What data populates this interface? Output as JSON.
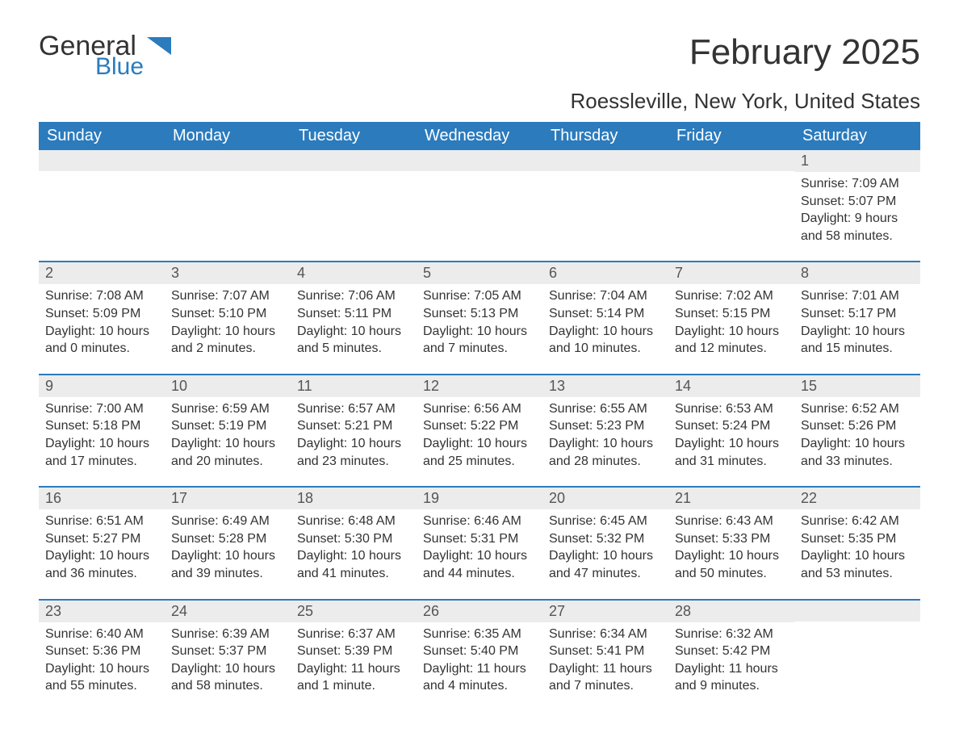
{
  "brand": {
    "part1": "General",
    "part2": "Blue",
    "brand_color": "#2b7bbd"
  },
  "title": "February 2025",
  "location": "Roessleville, New York, United States",
  "colors": {
    "header_bg": "#2b7bbd",
    "header_text": "#ffffff",
    "daynum_bg": "#ececec",
    "week_border": "#2b7bbd",
    "text": "#333333",
    "background": "#ffffff"
  },
  "typography": {
    "title_fontsize": 44,
    "location_fontsize": 26,
    "weekday_fontsize": 20,
    "daynum_fontsize": 18,
    "body_fontsize": 16
  },
  "weekdays": [
    "Sunday",
    "Monday",
    "Tuesday",
    "Wednesday",
    "Thursday",
    "Friday",
    "Saturday"
  ],
  "weeks": [
    [
      null,
      null,
      null,
      null,
      null,
      null,
      {
        "day": "1",
        "sunrise": "Sunrise: 7:09 AM",
        "sunset": "Sunset: 5:07 PM",
        "daylight1": "Daylight: 9 hours",
        "daylight2": "and 58 minutes."
      }
    ],
    [
      {
        "day": "2",
        "sunrise": "Sunrise: 7:08 AM",
        "sunset": "Sunset: 5:09 PM",
        "daylight1": "Daylight: 10 hours",
        "daylight2": "and 0 minutes."
      },
      {
        "day": "3",
        "sunrise": "Sunrise: 7:07 AM",
        "sunset": "Sunset: 5:10 PM",
        "daylight1": "Daylight: 10 hours",
        "daylight2": "and 2 minutes."
      },
      {
        "day": "4",
        "sunrise": "Sunrise: 7:06 AM",
        "sunset": "Sunset: 5:11 PM",
        "daylight1": "Daylight: 10 hours",
        "daylight2": "and 5 minutes."
      },
      {
        "day": "5",
        "sunrise": "Sunrise: 7:05 AM",
        "sunset": "Sunset: 5:13 PM",
        "daylight1": "Daylight: 10 hours",
        "daylight2": "and 7 minutes."
      },
      {
        "day": "6",
        "sunrise": "Sunrise: 7:04 AM",
        "sunset": "Sunset: 5:14 PM",
        "daylight1": "Daylight: 10 hours",
        "daylight2": "and 10 minutes."
      },
      {
        "day": "7",
        "sunrise": "Sunrise: 7:02 AM",
        "sunset": "Sunset: 5:15 PM",
        "daylight1": "Daylight: 10 hours",
        "daylight2": "and 12 minutes."
      },
      {
        "day": "8",
        "sunrise": "Sunrise: 7:01 AM",
        "sunset": "Sunset: 5:17 PM",
        "daylight1": "Daylight: 10 hours",
        "daylight2": "and 15 minutes."
      }
    ],
    [
      {
        "day": "9",
        "sunrise": "Sunrise: 7:00 AM",
        "sunset": "Sunset: 5:18 PM",
        "daylight1": "Daylight: 10 hours",
        "daylight2": "and 17 minutes."
      },
      {
        "day": "10",
        "sunrise": "Sunrise: 6:59 AM",
        "sunset": "Sunset: 5:19 PM",
        "daylight1": "Daylight: 10 hours",
        "daylight2": "and 20 minutes."
      },
      {
        "day": "11",
        "sunrise": "Sunrise: 6:57 AM",
        "sunset": "Sunset: 5:21 PM",
        "daylight1": "Daylight: 10 hours",
        "daylight2": "and 23 minutes."
      },
      {
        "day": "12",
        "sunrise": "Sunrise: 6:56 AM",
        "sunset": "Sunset: 5:22 PM",
        "daylight1": "Daylight: 10 hours",
        "daylight2": "and 25 minutes."
      },
      {
        "day": "13",
        "sunrise": "Sunrise: 6:55 AM",
        "sunset": "Sunset: 5:23 PM",
        "daylight1": "Daylight: 10 hours",
        "daylight2": "and 28 minutes."
      },
      {
        "day": "14",
        "sunrise": "Sunrise: 6:53 AM",
        "sunset": "Sunset: 5:24 PM",
        "daylight1": "Daylight: 10 hours",
        "daylight2": "and 31 minutes."
      },
      {
        "day": "15",
        "sunrise": "Sunrise: 6:52 AM",
        "sunset": "Sunset: 5:26 PM",
        "daylight1": "Daylight: 10 hours",
        "daylight2": "and 33 minutes."
      }
    ],
    [
      {
        "day": "16",
        "sunrise": "Sunrise: 6:51 AM",
        "sunset": "Sunset: 5:27 PM",
        "daylight1": "Daylight: 10 hours",
        "daylight2": "and 36 minutes."
      },
      {
        "day": "17",
        "sunrise": "Sunrise: 6:49 AM",
        "sunset": "Sunset: 5:28 PM",
        "daylight1": "Daylight: 10 hours",
        "daylight2": "and 39 minutes."
      },
      {
        "day": "18",
        "sunrise": "Sunrise: 6:48 AM",
        "sunset": "Sunset: 5:30 PM",
        "daylight1": "Daylight: 10 hours",
        "daylight2": "and 41 minutes."
      },
      {
        "day": "19",
        "sunrise": "Sunrise: 6:46 AM",
        "sunset": "Sunset: 5:31 PM",
        "daylight1": "Daylight: 10 hours",
        "daylight2": "and 44 minutes."
      },
      {
        "day": "20",
        "sunrise": "Sunrise: 6:45 AM",
        "sunset": "Sunset: 5:32 PM",
        "daylight1": "Daylight: 10 hours",
        "daylight2": "and 47 minutes."
      },
      {
        "day": "21",
        "sunrise": "Sunrise: 6:43 AM",
        "sunset": "Sunset: 5:33 PM",
        "daylight1": "Daylight: 10 hours",
        "daylight2": "and 50 minutes."
      },
      {
        "day": "22",
        "sunrise": "Sunrise: 6:42 AM",
        "sunset": "Sunset: 5:35 PM",
        "daylight1": "Daylight: 10 hours",
        "daylight2": "and 53 minutes."
      }
    ],
    [
      {
        "day": "23",
        "sunrise": "Sunrise: 6:40 AM",
        "sunset": "Sunset: 5:36 PM",
        "daylight1": "Daylight: 10 hours",
        "daylight2": "and 55 minutes."
      },
      {
        "day": "24",
        "sunrise": "Sunrise: 6:39 AM",
        "sunset": "Sunset: 5:37 PM",
        "daylight1": "Daylight: 10 hours",
        "daylight2": "and 58 minutes."
      },
      {
        "day": "25",
        "sunrise": "Sunrise: 6:37 AM",
        "sunset": "Sunset: 5:39 PM",
        "daylight1": "Daylight: 11 hours",
        "daylight2": "and 1 minute."
      },
      {
        "day": "26",
        "sunrise": "Sunrise: 6:35 AM",
        "sunset": "Sunset: 5:40 PM",
        "daylight1": "Daylight: 11 hours",
        "daylight2": "and 4 minutes."
      },
      {
        "day": "27",
        "sunrise": "Sunrise: 6:34 AM",
        "sunset": "Sunset: 5:41 PM",
        "daylight1": "Daylight: 11 hours",
        "daylight2": "and 7 minutes."
      },
      {
        "day": "28",
        "sunrise": "Sunrise: 6:32 AM",
        "sunset": "Sunset: 5:42 PM",
        "daylight1": "Daylight: 11 hours",
        "daylight2": "and 9 minutes."
      },
      null
    ]
  ]
}
